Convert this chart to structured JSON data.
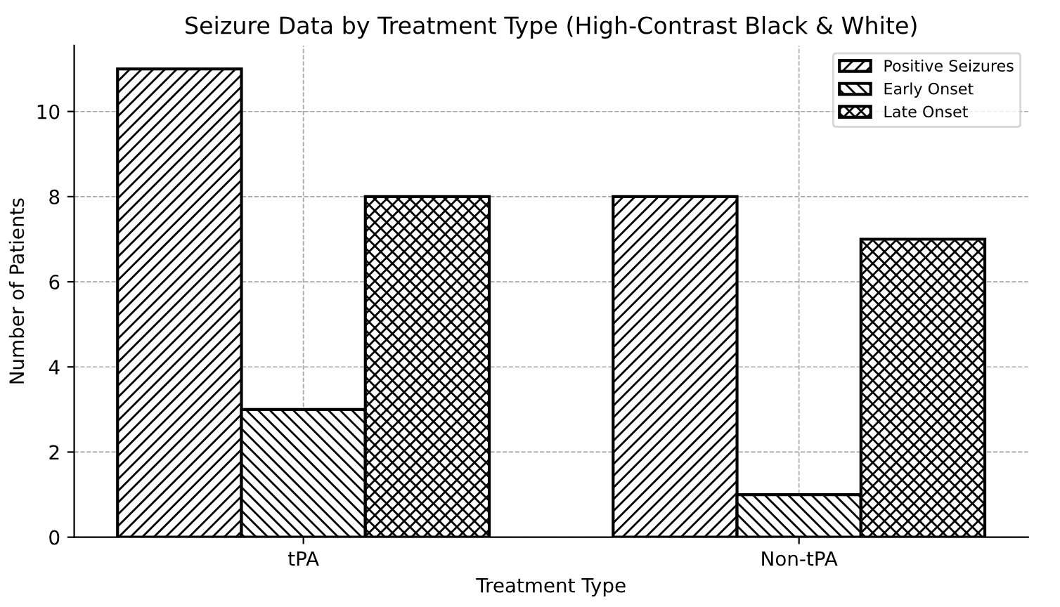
{
  "chart_data": {
    "type": "bar",
    "title": "Seizure Data by Treatment Type (High-Contrast Black & White)",
    "xlabel": "Treatment Type",
    "ylabel": "Number of Patients",
    "categories": [
      "tPA",
      "Non-tPA"
    ],
    "series": [
      {
        "name": "Positive Seizures",
        "color": "#000000",
        "values": [
          11,
          8
        ]
      },
      {
        "name": "Early Onset",
        "color": "#000000",
        "values": [
          3,
          1
        ]
      },
      {
        "name": "Late Onset",
        "color": "#000000",
        "values": [
          8,
          7
        ]
      }
    ],
    "ylim": [
      0,
      11.55
    ],
    "yticks": [
      0,
      2,
      4,
      6,
      8,
      10
    ],
    "grid": true,
    "legend": "top right"
  }
}
